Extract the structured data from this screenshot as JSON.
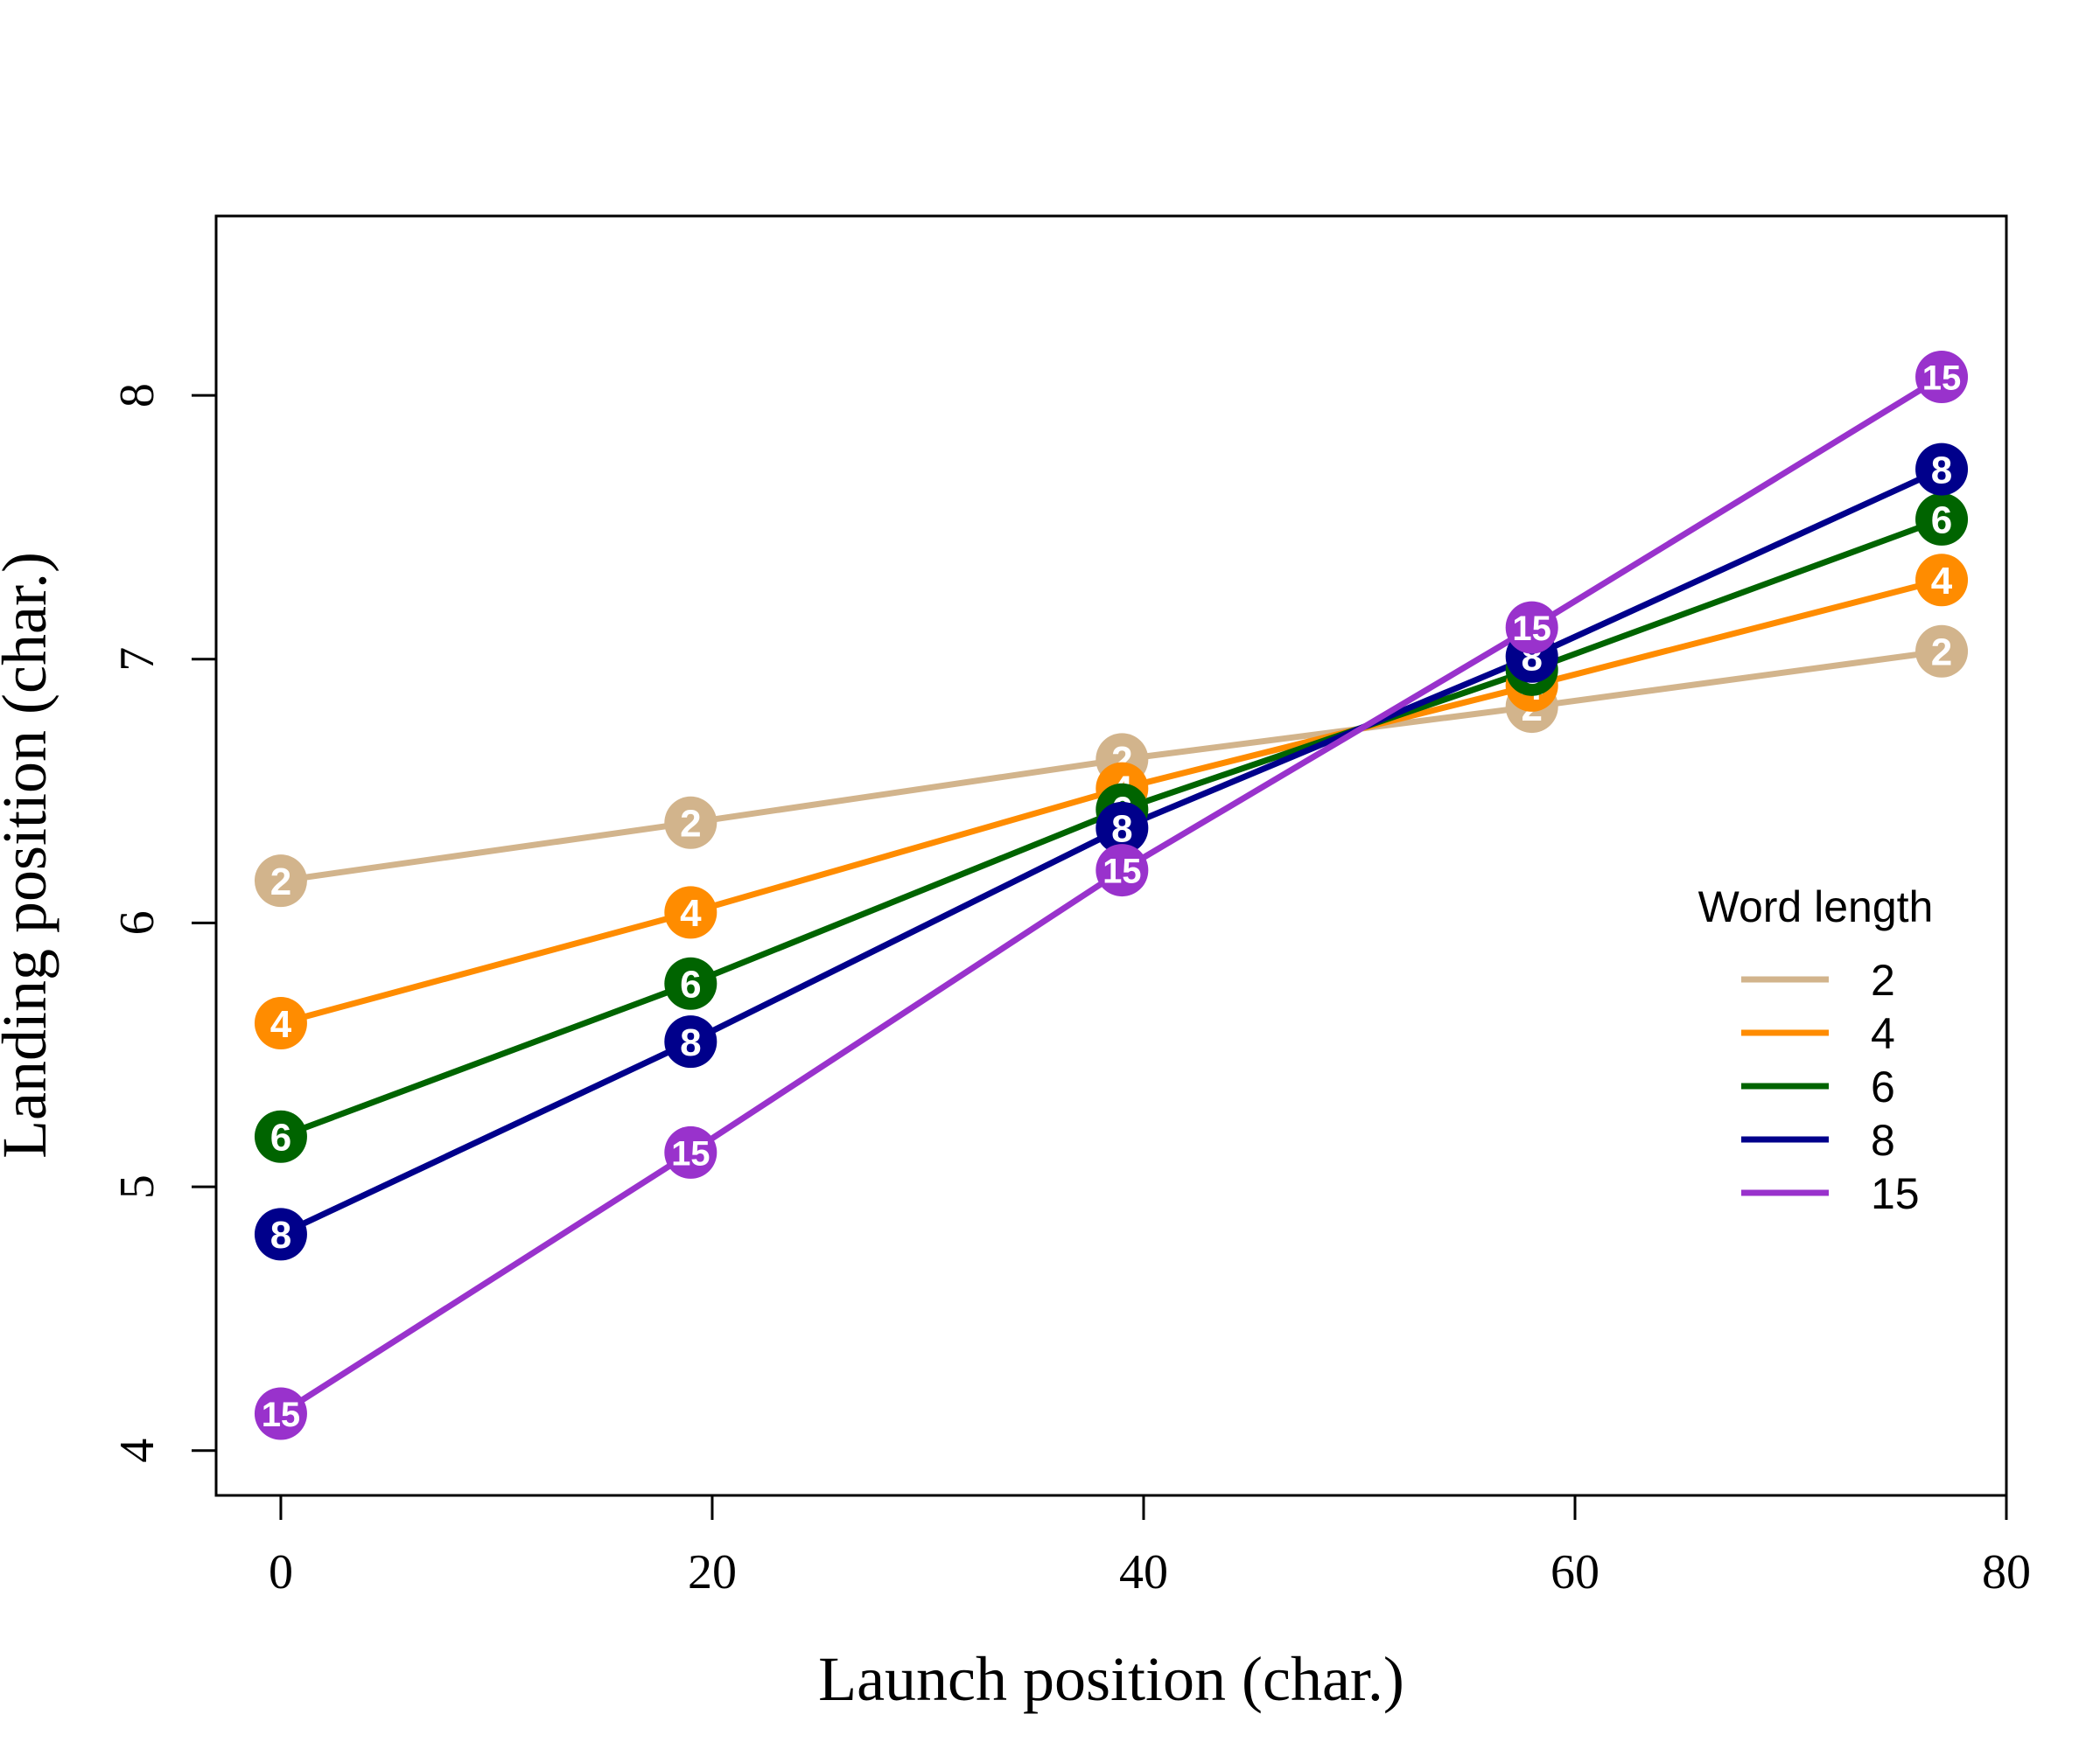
{
  "chart_data": {
    "type": "line",
    "xlabel": "Launch position (char.)",
    "ylabel": "Landing position (char.)",
    "xlim": [
      -3,
      80
    ],
    "ylim": [
      3.83,
      8.68
    ],
    "x_ticks": [
      0,
      20,
      40,
      60,
      80
    ],
    "y_ticks": [
      4,
      5,
      6,
      7,
      8
    ],
    "x_tick_labels": [
      "0",
      "20",
      "40",
      "60",
      "80"
    ],
    "y_tick_labels": [
      "4",
      "5",
      "6",
      "7",
      "8"
    ],
    "grid": false,
    "legend": {
      "title": "Word length",
      "position": "right"
    },
    "x": [
      0,
      19,
      39,
      58,
      77
    ],
    "series": [
      {
        "name": "2",
        "color": "#d2b48c",
        "values": [
          6.16,
          6.38,
          6.62,
          6.82,
          7.03
        ]
      },
      {
        "name": "4",
        "color": "#ff8c00",
        "values": [
          5.62,
          6.04,
          6.51,
          6.9,
          7.3
        ]
      },
      {
        "name": "6",
        "color": "#006400",
        "values": [
          5.19,
          5.77,
          6.43,
          6.96,
          7.53
        ]
      },
      {
        "name": "8",
        "color": "#00008b",
        "values": [
          4.82,
          5.55,
          6.36,
          7.01,
          7.72
        ]
      },
      {
        "name": "15",
        "color": "#9932cc",
        "values": [
          4.14,
          5.13,
          6.2,
          7.12,
          8.07
        ]
      }
    ]
  }
}
